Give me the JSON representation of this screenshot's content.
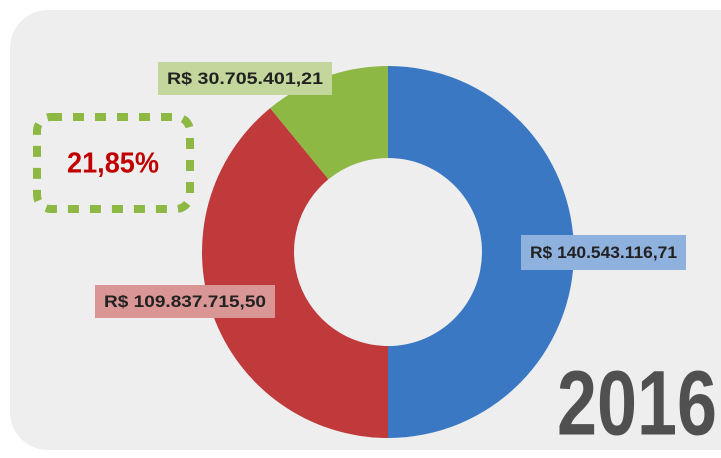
{
  "chart_data": {
    "type": "donut",
    "title": "2016",
    "annotation": "21,85%",
    "values": [
      140543116.71,
      109837715.5,
      30705401.21
    ],
    "value_labels": [
      "R$ 140.543.116,71",
      "R$ 109.837.715,50",
      "R$ 30.705.401,21"
    ],
    "colors": [
      "#3b78c3",
      "#c0393b",
      "#8cb843"
    ]
  }
}
